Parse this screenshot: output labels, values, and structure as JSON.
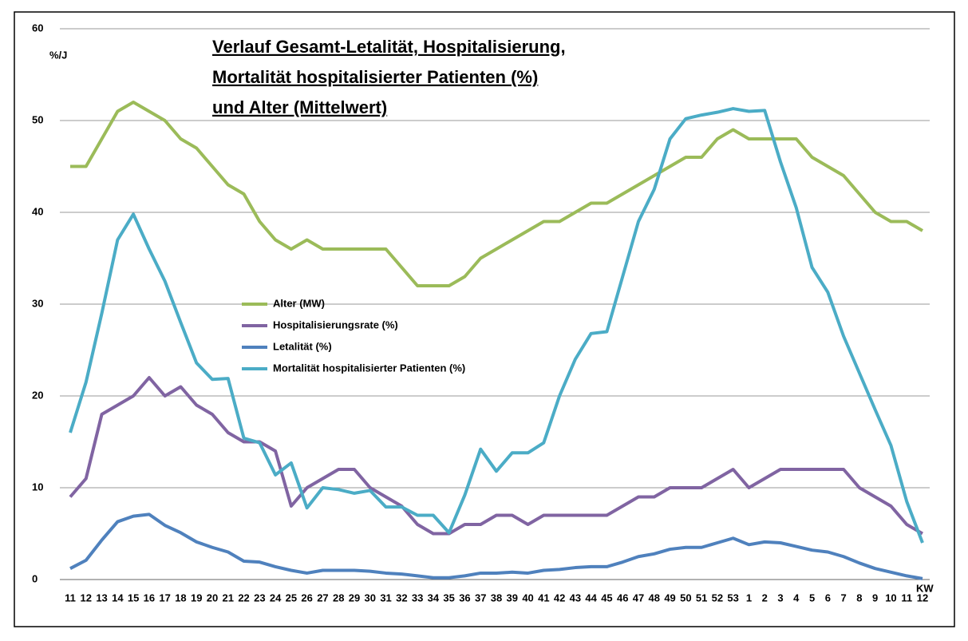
{
  "chart_data": {
    "type": "line",
    "title": [
      "Verlauf Gesamt-Letalität, Hospitalisierung,",
      "Mortalität hospitalisierter Patienten (%)",
      "und Alter (Mittelwert)"
    ],
    "y_label": "%/J",
    "x_label": "KW",
    "categories": [
      "11",
      "12",
      "13",
      "14",
      "15",
      "16",
      "17",
      "18",
      "19",
      "20",
      "21",
      "22",
      "23",
      "24",
      "25",
      "26",
      "27",
      "28",
      "29",
      "30",
      "31",
      "32",
      "33",
      "34",
      "35",
      "36",
      "37",
      "38",
      "39",
      "40",
      "41",
      "42",
      "43",
      "44",
      "45",
      "46",
      "47",
      "48",
      "49",
      "50",
      "51",
      "52",
      "53",
      "1",
      "2",
      "3",
      "4",
      "5",
      "6",
      "7",
      "8",
      "9",
      "10",
      "11",
      "12"
    ],
    "series": [
      {
        "name": "Alter (MW)",
        "color": "#9bbb59",
        "values": [
          45,
          45,
          48,
          51,
          52,
          51,
          50,
          48,
          47,
          45,
          43,
          42,
          39,
          37,
          36,
          37,
          36,
          36,
          36,
          36,
          36,
          34,
          32,
          32,
          32,
          33,
          35,
          36,
          37,
          38,
          39,
          39,
          40,
          41,
          41,
          42,
          43,
          44,
          45,
          46,
          46,
          48,
          49,
          48,
          48,
          48,
          48,
          46,
          45,
          44,
          42,
          40,
          39,
          39,
          38
        ]
      },
      {
        "name": "Hospitalisierungsrate (%)",
        "color": "#8064a2",
        "values": [
          9,
          11,
          18,
          19,
          20,
          22,
          20,
          21,
          19,
          18,
          16,
          15,
          15,
          14,
          8,
          10,
          11,
          12,
          12,
          10,
          9,
          8,
          6,
          5,
          5,
          6,
          6,
          7,
          7,
          6,
          7,
          7,
          7,
          7,
          7,
          8,
          9,
          9,
          10,
          10,
          10,
          11,
          12,
          10,
          11,
          12,
          12,
          12,
          12,
          12,
          10,
          9,
          8,
          6,
          5
        ]
      },
      {
        "name": "Letalität (%)",
        "color": "#4f81bd",
        "values": [
          1.2,
          2.1,
          4.3,
          6.3,
          6.9,
          7.1,
          5.9,
          5.1,
          4.1,
          3.5,
          3.0,
          2.0,
          1.9,
          1.4,
          1.0,
          0.7,
          1.0,
          1.0,
          1.0,
          0.9,
          0.7,
          0.6,
          0.4,
          0.2,
          0.2,
          0.4,
          0.7,
          0.7,
          0.8,
          0.7,
          1.0,
          1.1,
          1.3,
          1.4,
          1.4,
          1.9,
          2.5,
          2.8,
          3.3,
          3.5,
          3.5,
          4.0,
          4.5,
          3.8,
          4.1,
          4.0,
          3.6,
          3.2,
          3.0,
          2.5,
          1.8,
          1.2,
          0.8,
          0.4,
          0.1
        ]
      },
      {
        "name": "Mortalität hospitalisierter Patienten (%)",
        "color": "#4bacc6",
        "values": [
          16,
          21.5,
          29,
          37,
          39.8,
          36,
          32.5,
          28,
          23.6,
          21.8,
          21.9,
          15.4,
          14.9,
          11.4,
          12.7,
          7.8,
          10,
          9.8,
          9.4,
          9.7,
          7.9,
          7.9,
          7.0,
          7.0,
          5.1,
          9.2,
          14.2,
          11.8,
          13.8,
          13.8,
          14.9,
          20,
          24,
          26.8,
          27,
          33,
          39,
          42.5,
          48,
          50.2,
          50.6,
          50.9,
          51.3,
          51,
          51.1,
          45.5,
          40.5,
          34,
          31.3,
          26.5,
          22.5,
          18.5,
          14.6,
          8.5,
          4
        ]
      }
    ],
    "ylim": [
      0,
      60
    ],
    "yticks": [
      0,
      10,
      20,
      30,
      40,
      50,
      60
    ],
    "grid": true
  }
}
